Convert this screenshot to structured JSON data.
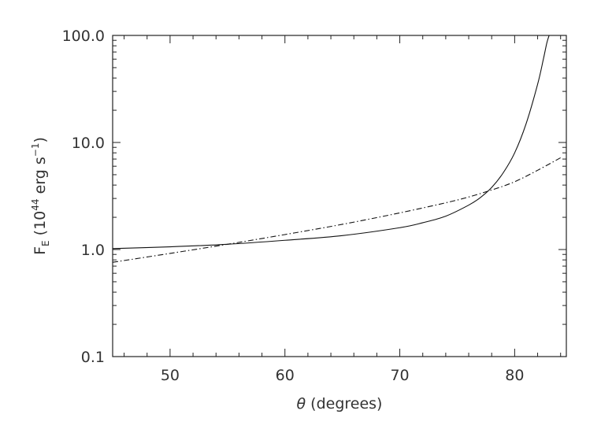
{
  "chart_data": {
    "type": "line",
    "title": "",
    "xlabel_symbol": "θ",
    "xlabel_text": " (degrees)",
    "ylabel_main": "F",
    "ylabel_sub": "E",
    "ylabel_open": " (10",
    "ylabel_exp1": "44",
    "ylabel_mid": " erg s",
    "ylabel_exp2": "−1",
    "ylabel_close": ")",
    "xlim": [
      45,
      84.5
    ],
    "ylim": [
      0.1,
      100.0
    ],
    "yscale": "log",
    "x_ticks": [
      50,
      60,
      70,
      80
    ],
    "x_tick_labels": [
      "50",
      "60",
      "70",
      "80"
    ],
    "y_ticks": [
      0.1,
      1.0,
      10.0,
      100.0
    ],
    "y_tick_labels": [
      "0.1",
      "1.0",
      "10.0",
      "100.0"
    ],
    "grid": false,
    "series": [
      {
        "line_style": "solid",
        "x": [
          45,
          50,
          55,
          60,
          65,
          70,
          72,
          74,
          76,
          77,
          78,
          79,
          80,
          81,
          82,
          82.5,
          82.8,
          83.0
        ],
        "y": [
          1.02,
          1.06,
          1.12,
          1.22,
          1.35,
          1.6,
          1.78,
          2.05,
          2.6,
          3.05,
          3.8,
          5.2,
          8.0,
          15.0,
          35.0,
          60.0,
          85.0,
          100.0
        ]
      },
      {
        "line_style": "dash-dot",
        "x": [
          45,
          50,
          55,
          60,
          65,
          70,
          75,
          78,
          80,
          82,
          84
        ],
        "y": [
          0.76,
          0.92,
          1.12,
          1.38,
          1.72,
          2.2,
          2.9,
          3.6,
          4.3,
          5.5,
          7.2
        ]
      }
    ]
  }
}
